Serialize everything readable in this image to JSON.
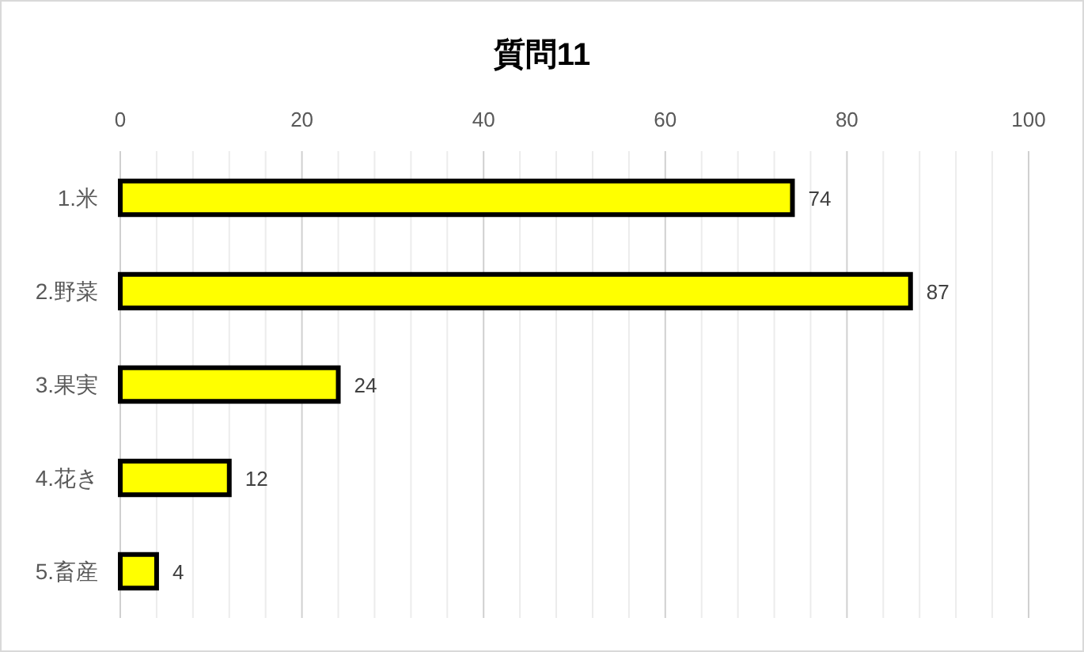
{
  "chart_data": {
    "type": "bar",
    "title": "質問11",
    "categories": [
      "1.米",
      "2.野菜",
      "3.果実",
      "4.花き",
      "5.畜産"
    ],
    "values": [
      74,
      87,
      24,
      12,
      4
    ],
    "color": "#ffff00",
    "orientation": "horizontal",
    "xlim": [
      0,
      100
    ],
    "xticks": [
      0,
      {
        "value": 4,
        "label": null
      },
      {
        "value": 8,
        "label": null
      },
      {
        "value": 12,
        "label": null
      },
      {
        "value": 16,
        "label": null
      },
      20,
      {
        "value": 24,
        "label": null
      },
      {
        "value": 28,
        "label": null
      },
      {
        "value": 32,
        "label": null
      },
      {
        "value": 36,
        "label": null
      },
      40,
      {
        "value": 44,
        "label": null
      },
      {
        "value": 48,
        "label": null
      },
      {
        "value": 52,
        "label": null
      },
      {
        "value": 56,
        "label": null
      },
      60,
      {
        "value": 64,
        "label": null
      },
      {
        "value": 68,
        "label": null
      },
      {
        "value": 72,
        "label": null
      },
      {
        "value": 76,
        "label": null
      },
      80,
      {
        "value": 84,
        "label": null
      },
      {
        "value": 88,
        "label": null
      },
      {
        "value": 92,
        "label": null
      },
      {
        "value": 96,
        "label": null
      },
      100
    ],
    "grid": "x",
    "data_labels": true
  }
}
